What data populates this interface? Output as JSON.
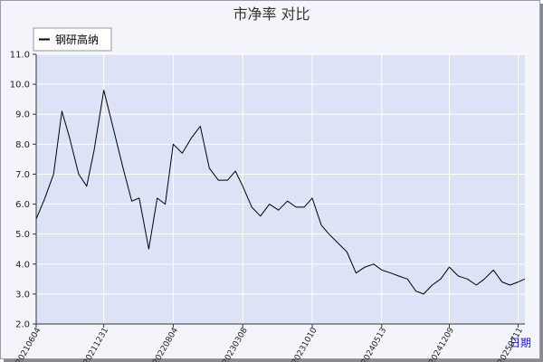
{
  "chart_data": {
    "type": "line",
    "title": "市净率  对比",
    "xlabel": "日期",
    "ylabel": "",
    "ylim": [
      2.0,
      11.0
    ],
    "yticks": [
      "2.0",
      "3.0",
      "4.0",
      "5.0",
      "6.0",
      "7.0",
      "8.0",
      "9.0",
      "10.0",
      "11.0"
    ],
    "xticks": [
      "20210604",
      "20211231",
      "20220804",
      "20230308",
      "20231010",
      "20240513",
      "20241209",
      "20250711"
    ],
    "grid": true,
    "legend": {
      "position": "top-left"
    },
    "colors": {
      "plot_background": "#dde3f7",
      "line": "#000000",
      "grid": "#ffffff"
    },
    "series": [
      {
        "name": "钢研高纳",
        "x": [
          "20210604",
          "20210701",
          "20210728",
          "20210823",
          "20210916",
          "20211014",
          "20211108",
          "20211201",
          "20211231",
          "20220128",
          "20220301",
          "20220328",
          "20220420",
          "20220520",
          "20220615",
          "20220710",
          "20220804",
          "20220901",
          "20220929",
          "20221027",
          "20221124",
          "20221222",
          "20230120",
          "20230213",
          "20230308",
          "20230405",
          "20230502",
          "20230530",
          "20230627",
          "20230725",
          "20230821",
          "20230915",
          "20231010",
          "20231107",
          "20231201",
          "20231229",
          "20240126",
          "20240223",
          "20240322",
          "20240418",
          "20240513",
          "20240610",
          "20240705",
          "20240801",
          "20240827",
          "20240920",
          "20241017",
          "20241112",
          "20241209",
          "20250106",
          "20250203",
          "20250303",
          "20250328",
          "20250425",
          "20250522",
          "20250616",
          "20250711",
          "20250801"
        ],
        "y": [
          5.5,
          6.2,
          7.0,
          9.1,
          8.2,
          7.0,
          6.6,
          7.8,
          9.8,
          8.6,
          7.2,
          6.1,
          6.2,
          4.5,
          6.2,
          6.0,
          8.0,
          7.7,
          8.2,
          8.6,
          7.2,
          6.8,
          6.8,
          7.1,
          6.6,
          5.9,
          5.6,
          6.0,
          5.8,
          6.1,
          5.9,
          5.9,
          6.2,
          5.3,
          5.0,
          4.7,
          4.4,
          3.7,
          3.9,
          4.0,
          3.8,
          3.7,
          3.6,
          3.5,
          3.1,
          3.0,
          3.3,
          3.5,
          3.9,
          3.6,
          3.5,
          3.3,
          3.5,
          3.8,
          3.4,
          3.3,
          3.4,
          3.5
        ]
      }
    ]
  }
}
